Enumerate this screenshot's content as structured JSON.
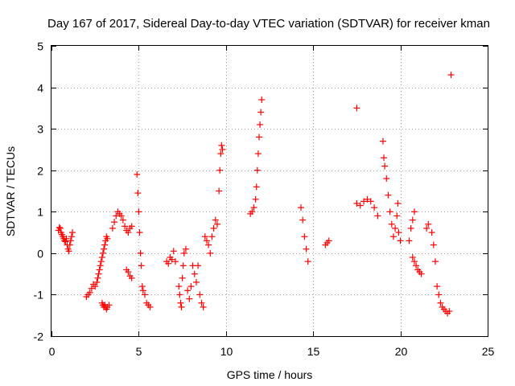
{
  "chart_data": {
    "type": "scatter",
    "title": "Day 167 of 2017, Sidereal Day-to-day VTEC variation (SDTVAR) for receiver kman",
    "xlabel": "GPS time / hours",
    "ylabel": "SDTVAR / TECUs",
    "xlim": [
      0,
      25
    ],
    "ylim": [
      -2,
      5
    ],
    "xticks": [
      "0",
      "5",
      "10",
      "15",
      "20",
      "25"
    ],
    "yticks": [
      "-2",
      "-1",
      "0",
      "1",
      "2",
      "3",
      "4",
      "5"
    ],
    "grid": true,
    "marker": "plus",
    "color": "#ff0000",
    "series": [
      {
        "name": "SDTVAR",
        "points": [
          [
            0.4,
            0.55
          ],
          [
            0.45,
            0.62
          ],
          [
            0.5,
            0.6
          ],
          [
            0.55,
            0.5
          ],
          [
            0.6,
            0.45
          ],
          [
            0.65,
            0.4
          ],
          [
            0.7,
            0.35
          ],
          [
            0.75,
            0.3
          ],
          [
            0.8,
            0.28
          ],
          [
            0.85,
            0.35
          ],
          [
            0.9,
            0.2
          ],
          [
            0.95,
            0.1
          ],
          [
            1.0,
            0.05
          ],
          [
            1.05,
            0.2
          ],
          [
            1.1,
            0.3
          ],
          [
            1.15,
            0.4
          ],
          [
            1.2,
            0.5
          ],
          [
            2.0,
            -1.05
          ],
          [
            2.1,
            -1.0
          ],
          [
            2.2,
            -0.95
          ],
          [
            2.3,
            -0.85
          ],
          [
            2.4,
            -0.75
          ],
          [
            2.5,
            -0.8
          ],
          [
            2.6,
            -0.7
          ],
          [
            2.65,
            -0.6
          ],
          [
            2.7,
            -0.5
          ],
          [
            2.75,
            -0.4
          ],
          [
            2.8,
            -0.3
          ],
          [
            2.85,
            -0.2
          ],
          [
            2.9,
            -0.1
          ],
          [
            2.95,
            0.0
          ],
          [
            3.0,
            0.1
          ],
          [
            3.05,
            0.2
          ],
          [
            3.1,
            0.3
          ],
          [
            3.15,
            0.4
          ],
          [
            3.2,
            0.35
          ],
          [
            2.9,
            -1.2
          ],
          [
            2.95,
            -1.25
          ],
          [
            3.0,
            -1.3
          ],
          [
            3.05,
            -1.25
          ],
          [
            3.1,
            -1.3
          ],
          [
            3.15,
            -1.35
          ],
          [
            3.2,
            -1.3
          ],
          [
            3.3,
            -1.25
          ],
          [
            3.5,
            0.6
          ],
          [
            3.6,
            0.75
          ],
          [
            3.7,
            0.9
          ],
          [
            3.8,
            1.0
          ],
          [
            3.9,
            0.95
          ],
          [
            4.0,
            0.9
          ],
          [
            4.1,
            0.8
          ],
          [
            4.2,
            0.65
          ],
          [
            4.3,
            0.55
          ],
          [
            4.4,
            0.5
          ],
          [
            4.5,
            0.6
          ],
          [
            4.6,
            0.65
          ],
          [
            4.3,
            -0.4
          ],
          [
            4.4,
            -0.45
          ],
          [
            4.5,
            -0.55
          ],
          [
            4.6,
            -0.6
          ],
          [
            4.9,
            1.9
          ],
          [
            4.95,
            1.45
          ],
          [
            5.0,
            1.0
          ],
          [
            5.05,
            0.5
          ],
          [
            5.1,
            0.0
          ],
          [
            5.15,
            -0.3
          ],
          [
            5.2,
            -0.8
          ],
          [
            5.25,
            -0.9
          ],
          [
            5.35,
            -1.0
          ],
          [
            5.45,
            -1.2
          ],
          [
            5.55,
            -1.25
          ],
          [
            5.65,
            -1.3
          ],
          [
            6.6,
            -0.2
          ],
          [
            6.7,
            -0.25
          ],
          [
            6.8,
            -0.1
          ],
          [
            6.9,
            -0.15
          ],
          [
            7.0,
            0.05
          ],
          [
            7.1,
            -0.2
          ],
          [
            7.3,
            -0.8
          ],
          [
            7.35,
            -1.0
          ],
          [
            7.4,
            -1.2
          ],
          [
            7.45,
            -1.3
          ],
          [
            7.5,
            -0.6
          ],
          [
            7.55,
            -0.3
          ],
          [
            7.6,
            0.0
          ],
          [
            7.7,
            0.1
          ],
          [
            7.8,
            -0.9
          ],
          [
            7.9,
            -1.1
          ],
          [
            8.0,
            -0.8
          ],
          [
            8.1,
            -0.3
          ],
          [
            8.2,
            -0.5
          ],
          [
            8.3,
            -0.7
          ],
          [
            8.4,
            -0.3
          ],
          [
            8.5,
            -1.0
          ],
          [
            8.6,
            -1.2
          ],
          [
            8.7,
            -1.3
          ],
          [
            8.8,
            0.4
          ],
          [
            8.9,
            0.3
          ],
          [
            9.0,
            0.2
          ],
          [
            9.1,
            0.0
          ],
          [
            9.2,
            0.4
          ],
          [
            9.3,
            0.6
          ],
          [
            9.4,
            0.8
          ],
          [
            9.5,
            0.7
          ],
          [
            9.6,
            1.5
          ],
          [
            9.65,
            2.0
          ],
          [
            9.7,
            2.4
          ],
          [
            9.75,
            2.6
          ],
          [
            9.8,
            2.5
          ],
          [
            11.4,
            0.95
          ],
          [
            11.5,
            1.0
          ],
          [
            11.6,
            1.1
          ],
          [
            11.7,
            1.3
          ],
          [
            11.75,
            1.6
          ],
          [
            11.8,
            2.0
          ],
          [
            11.85,
            2.4
          ],
          [
            11.9,
            2.8
          ],
          [
            11.95,
            3.1
          ],
          [
            12.0,
            3.4
          ],
          [
            12.05,
            3.7
          ],
          [
            14.3,
            1.1
          ],
          [
            14.4,
            0.8
          ],
          [
            14.5,
            0.4
          ],
          [
            14.6,
            0.1
          ],
          [
            14.7,
            -0.2
          ],
          [
            15.7,
            0.2
          ],
          [
            15.8,
            0.25
          ],
          [
            15.9,
            0.3
          ],
          [
            17.5,
            3.5
          ],
          [
            17.5,
            1.2
          ],
          [
            17.7,
            1.15
          ],
          [
            17.9,
            1.25
          ],
          [
            18.1,
            1.3
          ],
          [
            18.3,
            1.25
          ],
          [
            18.5,
            1.1
          ],
          [
            18.7,
            0.9
          ],
          [
            19.0,
            2.7
          ],
          [
            19.05,
            2.3
          ],
          [
            19.1,
            2.1
          ],
          [
            19.2,
            1.8
          ],
          [
            19.3,
            1.4
          ],
          [
            19.4,
            1.0
          ],
          [
            19.5,
            0.7
          ],
          [
            19.6,
            0.4
          ],
          [
            19.7,
            0.6
          ],
          [
            19.8,
            0.9
          ],
          [
            19.85,
            1.2
          ],
          [
            19.9,
            0.5
          ],
          [
            20.0,
            0.3
          ],
          [
            20.5,
            0.3
          ],
          [
            20.6,
            0.6
          ],
          [
            20.7,
            0.8
          ],
          [
            20.8,
            1.0
          ],
          [
            20.7,
            -0.1
          ],
          [
            20.8,
            -0.2
          ],
          [
            20.9,
            -0.3
          ],
          [
            21.0,
            -0.4
          ],
          [
            21.1,
            -0.45
          ],
          [
            21.2,
            -0.5
          ],
          [
            21.5,
            0.6
          ],
          [
            21.6,
            0.7
          ],
          [
            21.8,
            0.5
          ],
          [
            21.9,
            0.2
          ],
          [
            22.0,
            -0.2
          ],
          [
            22.1,
            -0.8
          ],
          [
            22.2,
            -1.0
          ],
          [
            22.3,
            -1.2
          ],
          [
            22.4,
            -1.3
          ],
          [
            22.5,
            -1.35
          ],
          [
            22.6,
            -1.4
          ],
          [
            22.7,
            -1.45
          ],
          [
            22.8,
            -1.4
          ],
          [
            22.9,
            4.3
          ]
        ]
      }
    ]
  }
}
